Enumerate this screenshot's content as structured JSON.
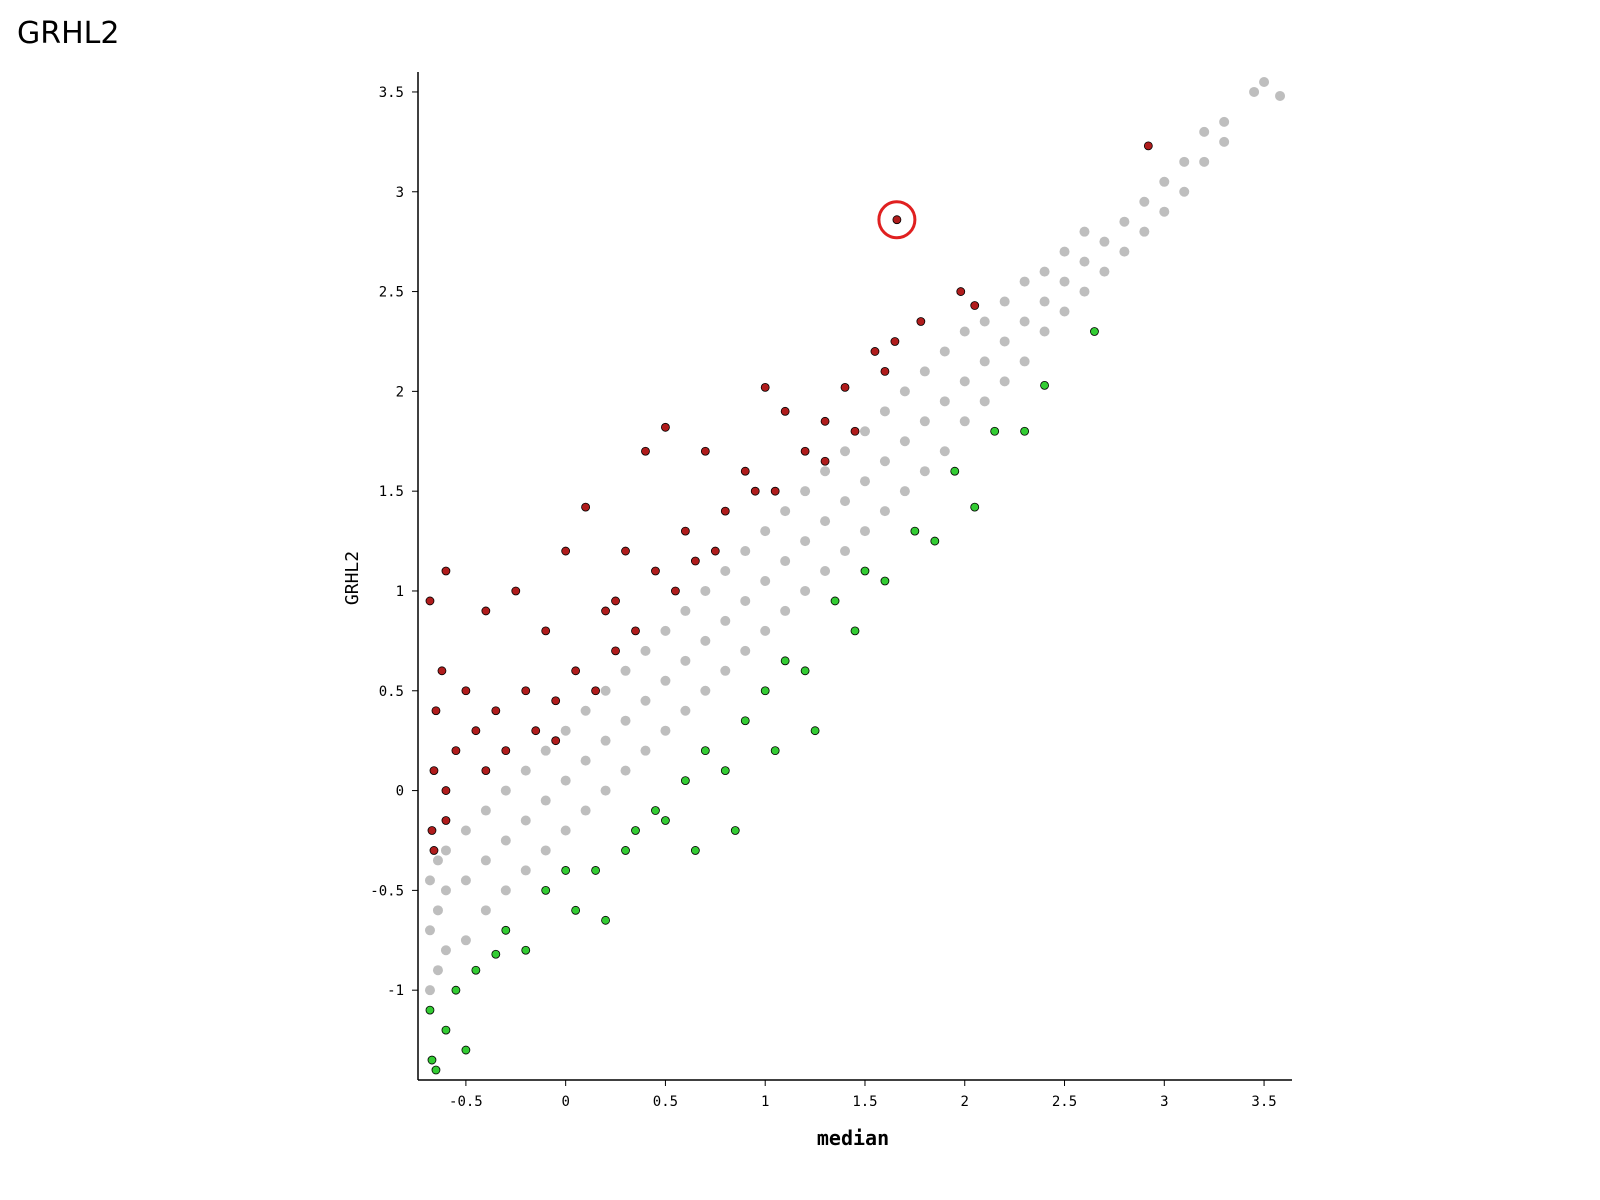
{
  "page_title": "GRHL2",
  "chart_data": {
    "type": "scatter",
    "xlabel": "median",
    "ylabel": "GRHL2",
    "xlim": [
      -0.74,
      3.64
    ],
    "ylim": [
      -1.45,
      3.6
    ],
    "xticks": [
      -0.5,
      0,
      0.5,
      1,
      1.5,
      2,
      2.5,
      3,
      3.5
    ],
    "yticks": [
      -1,
      -0.5,
      0,
      0.5,
      1,
      1.5,
      2,
      2.5,
      3,
      3.5
    ],
    "grid": false,
    "highlight": {
      "x": 1.66,
      "y": 2.86,
      "color": "#e02020"
    },
    "series": [
      {
        "color": "#bebebe",
        "x": [
          -0.68,
          -0.68,
          -0.68,
          -0.64,
          -0.64,
          -0.64,
          -0.6,
          -0.6,
          -0.6,
          -0.5,
          -0.5,
          -0.5,
          -0.4,
          -0.4,
          -0.4,
          -0.3,
          -0.3,
          -0.3,
          -0.2,
          -0.2,
          -0.2,
          -0.1,
          -0.1,
          -0.1,
          0,
          0,
          0,
          0.1,
          0.1,
          0.1,
          0.2,
          0.2,
          0.2,
          0.3,
          0.3,
          0.3,
          0.4,
          0.4,
          0.4,
          0.5,
          0.5,
          0.5,
          0.6,
          0.6,
          0.6,
          0.7,
          0.7,
          0.7,
          0.8,
          0.8,
          0.8,
          0.9,
          0.9,
          0.9,
          1,
          1,
          1,
          1.1,
          1.1,
          1.1,
          1.2,
          1.2,
          1.2,
          1.3,
          1.3,
          1.3,
          1.4,
          1.4,
          1.4,
          1.5,
          1.5,
          1.5,
          1.6,
          1.6,
          1.6,
          1.7,
          1.7,
          1.7,
          1.8,
          1.8,
          1.8,
          1.9,
          1.9,
          1.9,
          2,
          2,
          2,
          2.1,
          2.1,
          2.1,
          2.2,
          2.2,
          2.2,
          2.3,
          2.3,
          2.3,
          2.4,
          2.4,
          2.4,
          2.5,
          2.5,
          2.5,
          2.6,
          2.6,
          2.6,
          2.7,
          2.7,
          2.8,
          2.8,
          2.9,
          2.9,
          3,
          3,
          3.1,
          3.1,
          3.2,
          3.2,
          3.3,
          3.3,
          3.45,
          3.5,
          3.58
        ],
        "y": [
          -1,
          -0.7,
          -0.45,
          -0.9,
          -0.6,
          -0.35,
          -0.8,
          -0.5,
          -0.3,
          -0.75,
          -0.45,
          -0.2,
          -0.6,
          -0.35,
          -0.1,
          -0.5,
          -0.25,
          0,
          -0.4,
          -0.15,
          0.1,
          -0.3,
          -0.05,
          0.2,
          -0.2,
          0.05,
          0.3,
          -0.1,
          0.15,
          0.4,
          0,
          0.25,
          0.5,
          0.1,
          0.35,
          0.6,
          0.2,
          0.45,
          0.7,
          0.3,
          0.55,
          0.8,
          0.4,
          0.65,
          0.9,
          0.5,
          0.75,
          1,
          0.6,
          0.85,
          1.1,
          0.7,
          0.95,
          1.2,
          0.8,
          1.05,
          1.3,
          0.9,
          1.15,
          1.4,
          1,
          1.25,
          1.5,
          1.1,
          1.35,
          1.6,
          1.2,
          1.45,
          1.7,
          1.3,
          1.55,
          1.8,
          1.4,
          1.65,
          1.9,
          1.5,
          1.75,
          2,
          1.6,
          1.85,
          2.1,
          1.7,
          1.95,
          2.2,
          1.85,
          2.05,
          2.3,
          1.95,
          2.15,
          2.35,
          2.05,
          2.25,
          2.45,
          2.15,
          2.35,
          2.55,
          2.3,
          2.45,
          2.6,
          2.4,
          2.55,
          2.7,
          2.5,
          2.65,
          2.8,
          2.6,
          2.75,
          2.7,
          2.85,
          2.8,
          2.95,
          2.9,
          3.05,
          3,
          3.15,
          3.15,
          3.3,
          3.25,
          3.35,
          3.5,
          3.55,
          3.48
        ]
      },
      {
        "color": "#b01c1c",
        "x": [
          -0.68,
          -0.6,
          -0.62,
          -0.65,
          -0.66,
          -0.67,
          -0.66,
          -0.6,
          -0.55,
          -0.5,
          -0.45,
          -0.4,
          -0.35,
          -0.3,
          -0.25,
          -0.2,
          -0.15,
          -0.1,
          -0.05,
          0,
          0.05,
          0.1,
          0.15,
          0.2,
          0.25,
          0.3,
          0.35,
          0.4,
          0.45,
          0.5,
          0.55,
          0.6,
          0.7,
          0.75,
          0.8,
          0.9,
          0.95,
          1,
          1.05,
          1.1,
          1.2,
          1.3,
          1.4,
          1.45,
          1.55,
          1.6,
          1.65,
          1.78,
          1.98,
          2.05,
          2.92,
          1.66,
          1.3,
          0.65,
          0.25,
          -0.05,
          -0.4,
          -0.6
        ],
        "y": [
          0.95,
          1.1,
          0.6,
          0.4,
          0.1,
          -0.2,
          -0.3,
          0,
          0.2,
          0.5,
          0.3,
          0.9,
          0.4,
          0.2,
          1,
          0.5,
          0.3,
          0.8,
          0.45,
          1.2,
          0.6,
          1.42,
          0.5,
          0.9,
          0.7,
          1.2,
          0.8,
          1.7,
          1.1,
          1.82,
          1,
          1.3,
          1.7,
          1.2,
          1.4,
          1.6,
          1.5,
          2.02,
          1.5,
          1.9,
          1.7,
          1.65,
          2.02,
          1.8,
          2.2,
          2.1,
          2.25,
          2.35,
          2.5,
          2.43,
          3.23,
          2.86,
          1.85,
          1.15,
          0.95,
          0.25,
          0.1,
          -0.15
        ]
      },
      {
        "color": "#33cc33",
        "x": [
          -0.68,
          -0.67,
          -0.65,
          -0.6,
          -0.55,
          -0.5,
          -0.45,
          -0.35,
          -0.3,
          -0.2,
          -0.1,
          0,
          0.05,
          0.15,
          0.2,
          0.3,
          0.35,
          0.45,
          0.5,
          0.6,
          0.65,
          0.7,
          0.8,
          0.85,
          0.9,
          1,
          1.05,
          1.1,
          1.2,
          1.25,
          1.35,
          1.45,
          1.5,
          1.6,
          1.75,
          1.85,
          1.95,
          2.05,
          2.15,
          2.3,
          2.4,
          2.65
        ],
        "y": [
          -1.1,
          -1.35,
          -1.4,
          -1.2,
          -1,
          -1.3,
          -0.9,
          -0.82,
          -0.7,
          -0.8,
          -0.5,
          -0.4,
          -0.6,
          -0.4,
          -0.65,
          -0.3,
          -0.2,
          -0.1,
          -0.15,
          0.05,
          -0.3,
          0.2,
          0.1,
          -0.2,
          0.35,
          0.5,
          0.2,
          0.65,
          0.6,
          0.3,
          0.95,
          0.8,
          1.1,
          1.05,
          1.3,
          1.25,
          1.6,
          1.42,
          1.8,
          1.8,
          2.03,
          2.3
        ]
      }
    ]
  }
}
